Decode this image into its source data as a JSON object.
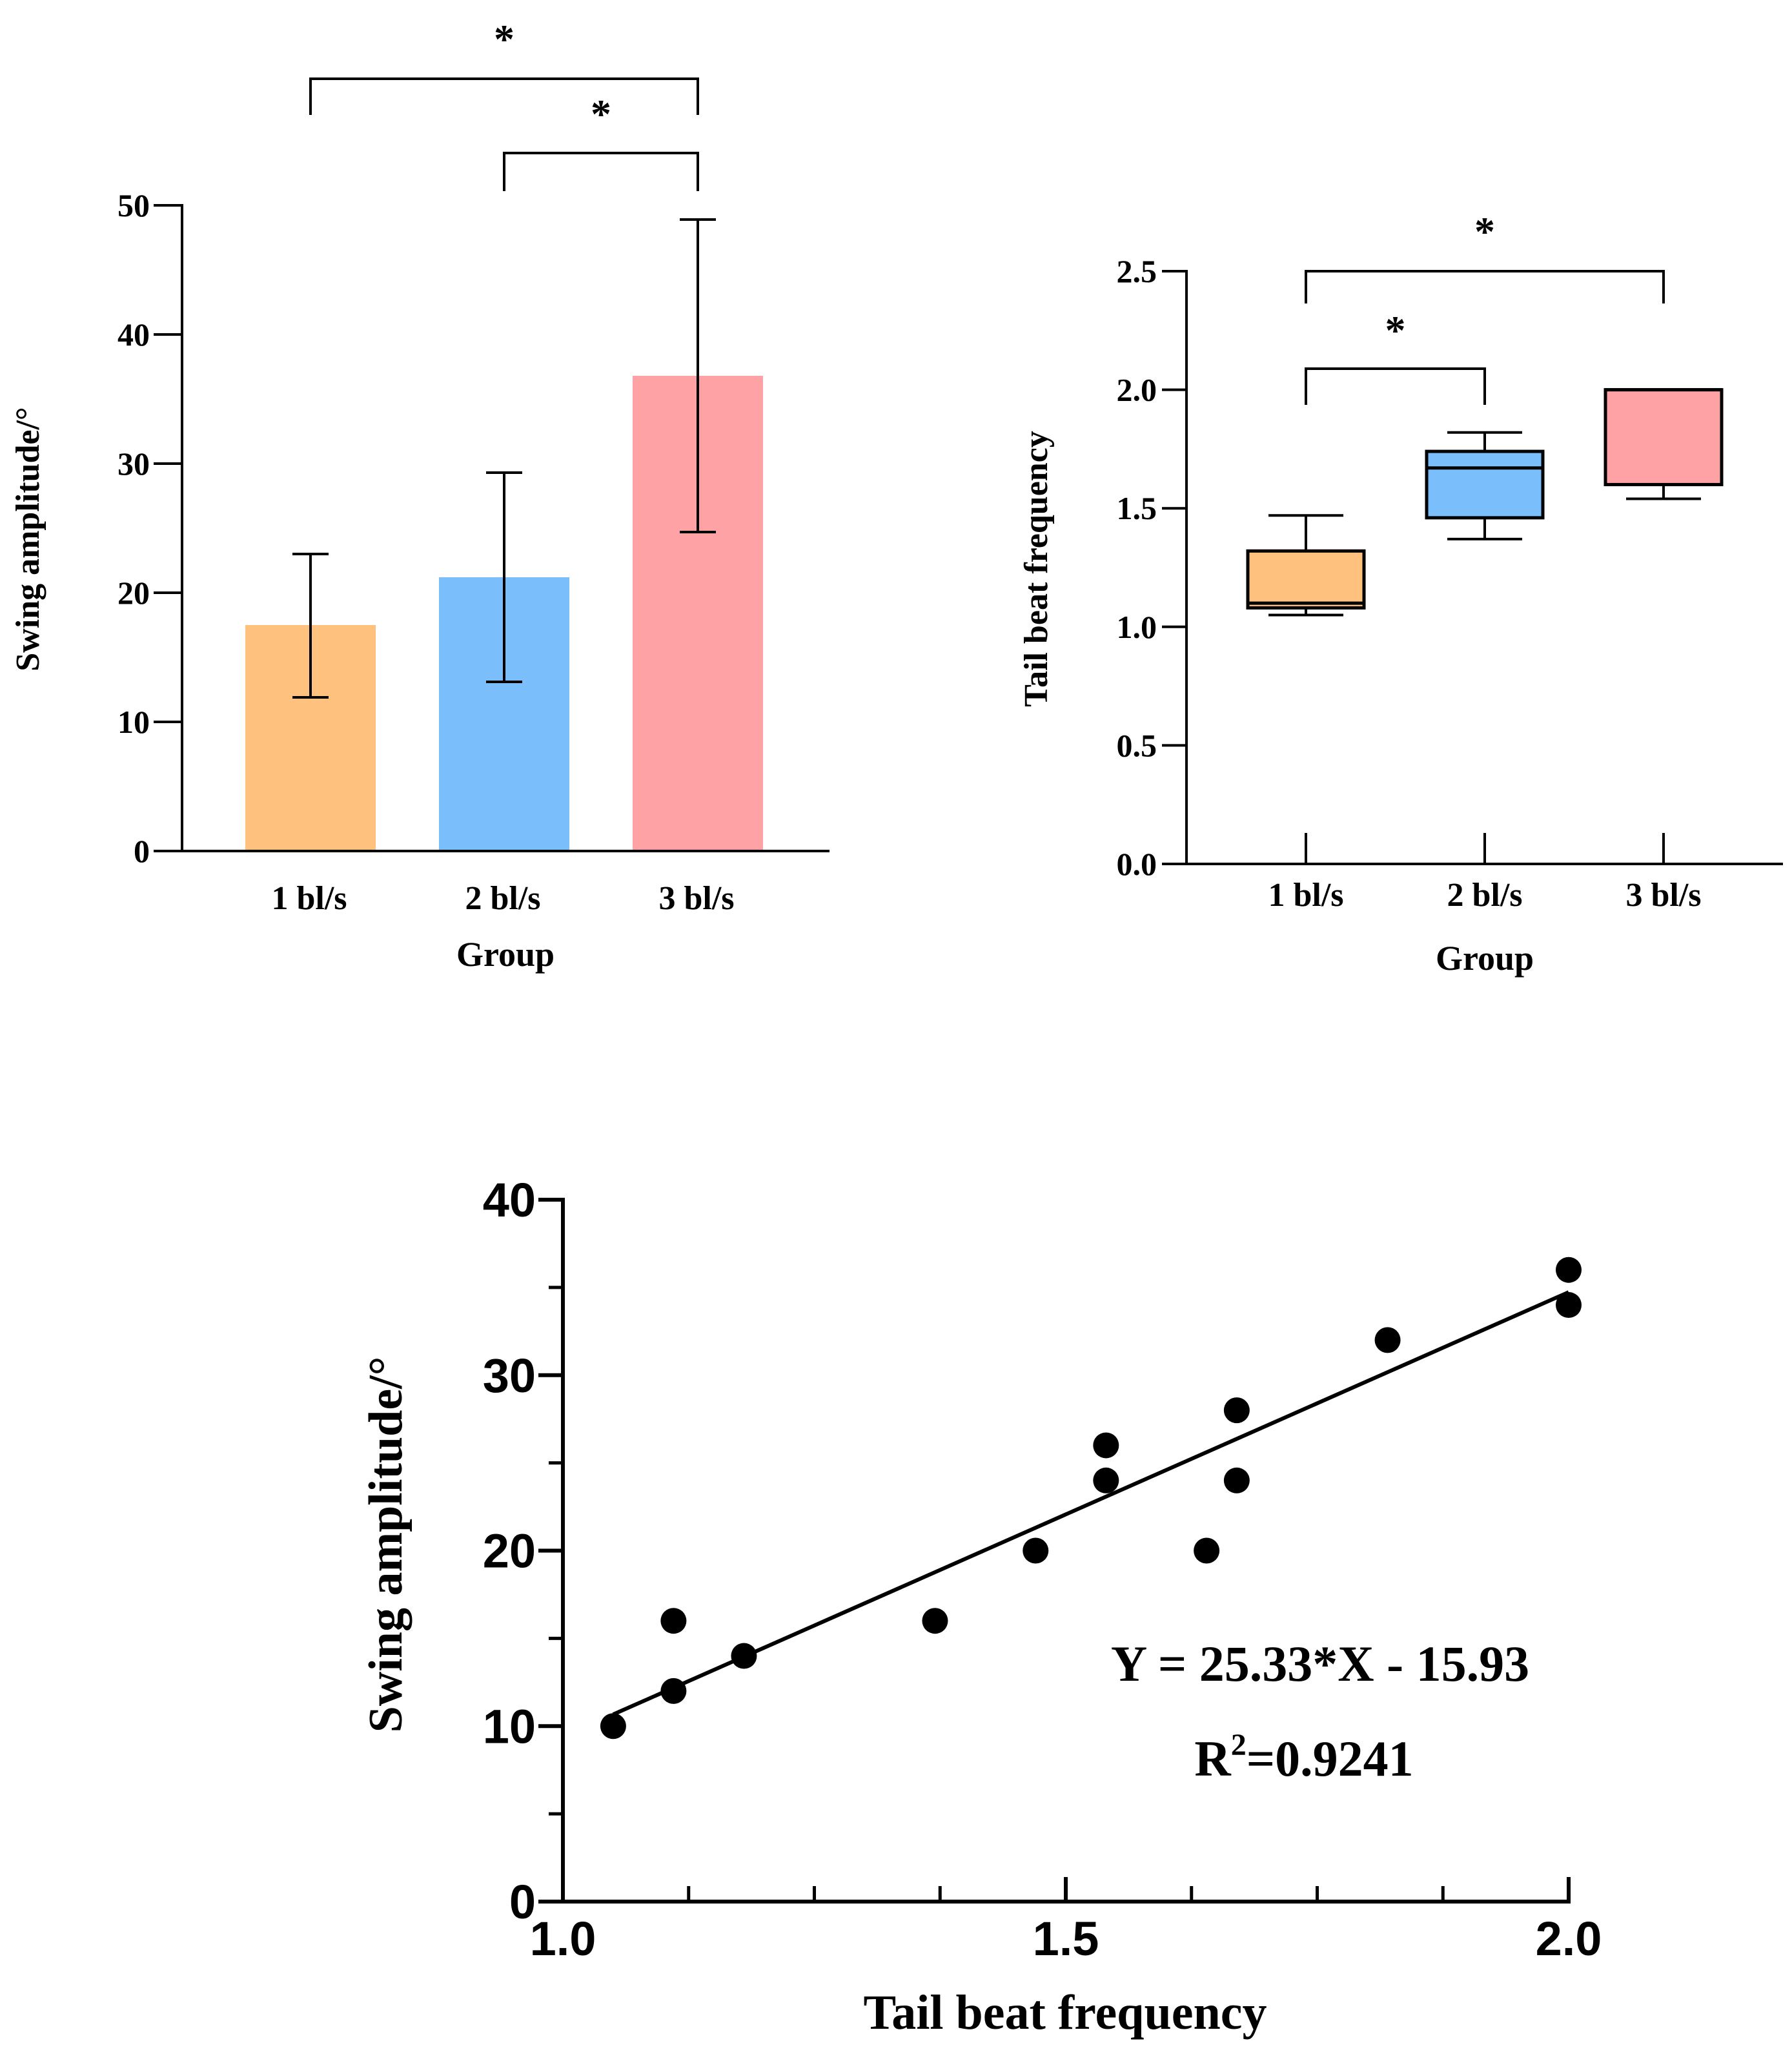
{
  "chart_data": [
    {
      "type": "bar",
      "categories": [
        "1 bl/s",
        "2 bl/s",
        "3 bl/s"
      ],
      "values": [
        17.5,
        21.2,
        36.8
      ],
      "error_low": [
        11.9,
        13.1,
        24.7
      ],
      "error_high": [
        23.0,
        29.3,
        48.9
      ],
      "colors": [
        "#FFC17E",
        "#7ABFFB",
        "#FFA2A5"
      ],
      "xlabel": "Group",
      "ylabel": "Swing amplitude/°",
      "ylim": [
        0,
        50
      ],
      "yticks": [
        "0",
        "10",
        "20",
        "30",
        "40",
        "50"
      ],
      "significance": [
        {
          "from": 0,
          "to": 2,
          "label": "*"
        },
        {
          "from": 1,
          "to": 2,
          "label": "*"
        }
      ],
      "grid": false
    },
    {
      "type": "box",
      "categories": [
        "1 bl/s",
        "2 bl/s",
        "3 bl/s"
      ],
      "boxes": [
        {
          "min": 1.05,
          "q1": 1.08,
          "median": 1.1,
          "q3": 1.32,
          "max": 1.47
        },
        {
          "min": 1.37,
          "q1": 1.46,
          "median": 1.67,
          "q3": 1.74,
          "max": 1.82
        },
        {
          "min": 1.54,
          "q1": 1.6,
          "median": 2.0,
          "q3": 2.0,
          "max": 2.0
        }
      ],
      "colors": [
        "#FFC17E",
        "#7ABFFB",
        "#FFA2A5"
      ],
      "xlabel": "Group",
      "ylabel": "Tail beat frequency",
      "ylim": [
        0,
        2.5
      ],
      "yticks": [
        "0.0",
        "0.5",
        "1.0",
        "1.5",
        "2.0",
        "2.5"
      ],
      "significance": [
        {
          "from": 0,
          "to": 1,
          "label": "*"
        },
        {
          "from": 0,
          "to": 2,
          "label": "*"
        }
      ],
      "grid": false
    },
    {
      "type": "scatter",
      "points": [
        [
          1.05,
          10
        ],
        [
          1.11,
          12
        ],
        [
          1.11,
          16
        ],
        [
          1.18,
          14
        ],
        [
          1.37,
          16
        ],
        [
          1.47,
          20
        ],
        [
          1.54,
          24
        ],
        [
          1.54,
          26
        ],
        [
          1.64,
          20
        ],
        [
          1.67,
          24
        ],
        [
          1.67,
          28
        ],
        [
          1.82,
          32
        ],
        [
          2.0,
          34
        ],
        [
          2.0,
          36
        ]
      ],
      "fit": {
        "slope": 25.33,
        "intercept": -15.93,
        "x_range": [
          1.05,
          2.0
        ]
      },
      "equation": "Y = 25.33*X - 15.93",
      "r2_prefix": "R",
      "r2_sup": "2",
      "r2_value": "=0.9241",
      "xlabel": "Tail beat frequency",
      "ylabel": "Swing amplitude/°",
      "xlim": [
        1.0,
        2.0
      ],
      "ylim": [
        0,
        40
      ],
      "xticks": [
        "1.0",
        "1.5",
        "2.0"
      ],
      "yticks": [
        "0",
        "10",
        "20",
        "30",
        "40"
      ],
      "grid": false
    }
  ]
}
